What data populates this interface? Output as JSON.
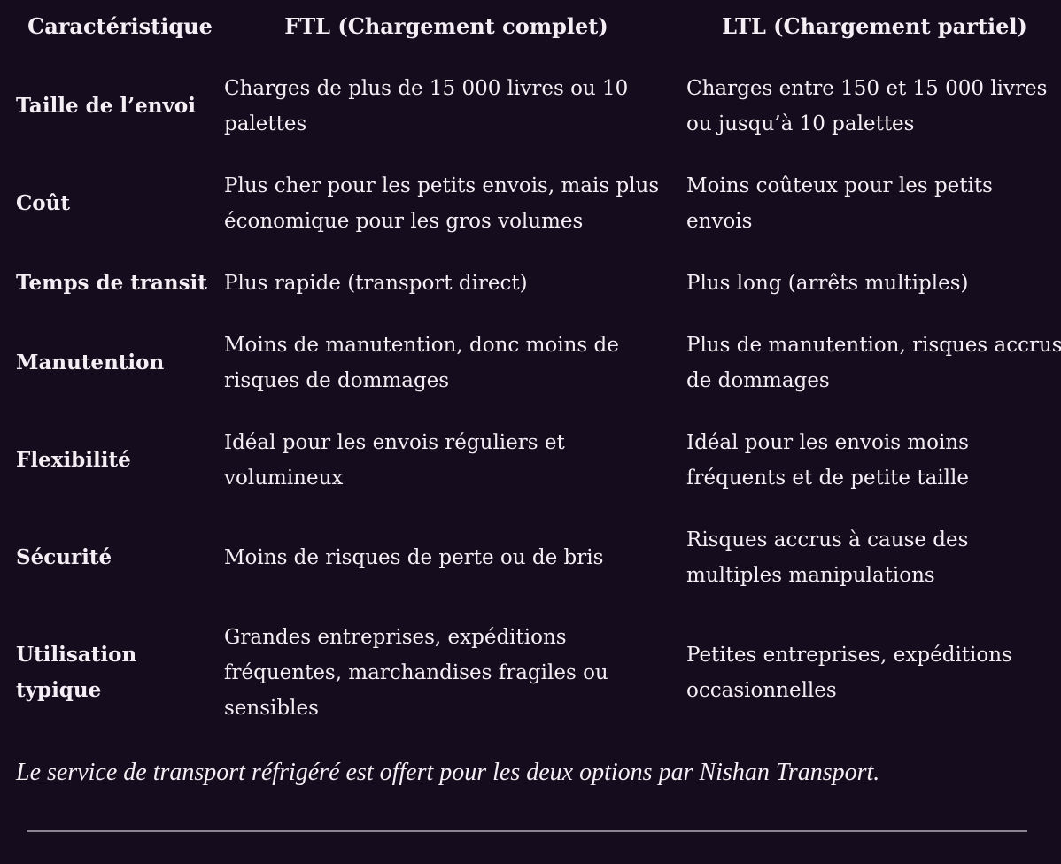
{
  "table": {
    "headers": {
      "feature": "Caractéristique",
      "ftl": "FTL (Chargement complet)",
      "ltl": "LTL (Chargement partiel)"
    },
    "rows": [
      {
        "label": "Taille de l’envoi",
        "ftl": "Charges de plus de 15 000 livres ou 10 palettes",
        "ltl": "Charges entre 150 et 15 000 livres ou jusqu’à 10 palettes"
      },
      {
        "label": "Coût",
        "ftl": "Plus cher pour les petits envois, mais plus économique pour les gros volumes",
        "ltl": "Moins coûteux pour les petits envois"
      },
      {
        "label": "Temps de transit",
        "ftl": "Plus rapide (transport direct)",
        "ltl": "Plus long (arrêts multiples)"
      },
      {
        "label": "Manutention",
        "ftl": "Moins de manutention, donc moins de risques de dommages",
        "ltl": "Plus de manutention, risques accrus de dommages"
      },
      {
        "label": "Flexibilité",
        "ftl": "Idéal pour les envois réguliers et volumineux",
        "ltl": "Idéal pour les envois moins fréquents et de petite taille"
      },
      {
        "label": "Sécurité",
        "ftl": "Moins de risques de perte ou de bris",
        "ltl": "Risques accrus à cause des multiples manipulations"
      },
      {
        "label": "Utilisation typique",
        "ftl": "Grandes entreprises, expéditions fréquentes, marchandises fragiles ou sensibles",
        "ltl": "Petites entreprises, expéditions occasionnelles"
      }
    ]
  },
  "footnote": "Le service de transport réfrigéré est offert pour les deux options par Nishan Transport.",
  "colors": {
    "background": "#150c1e",
    "text": "#f4eff4",
    "divider": "#8b8792"
  }
}
